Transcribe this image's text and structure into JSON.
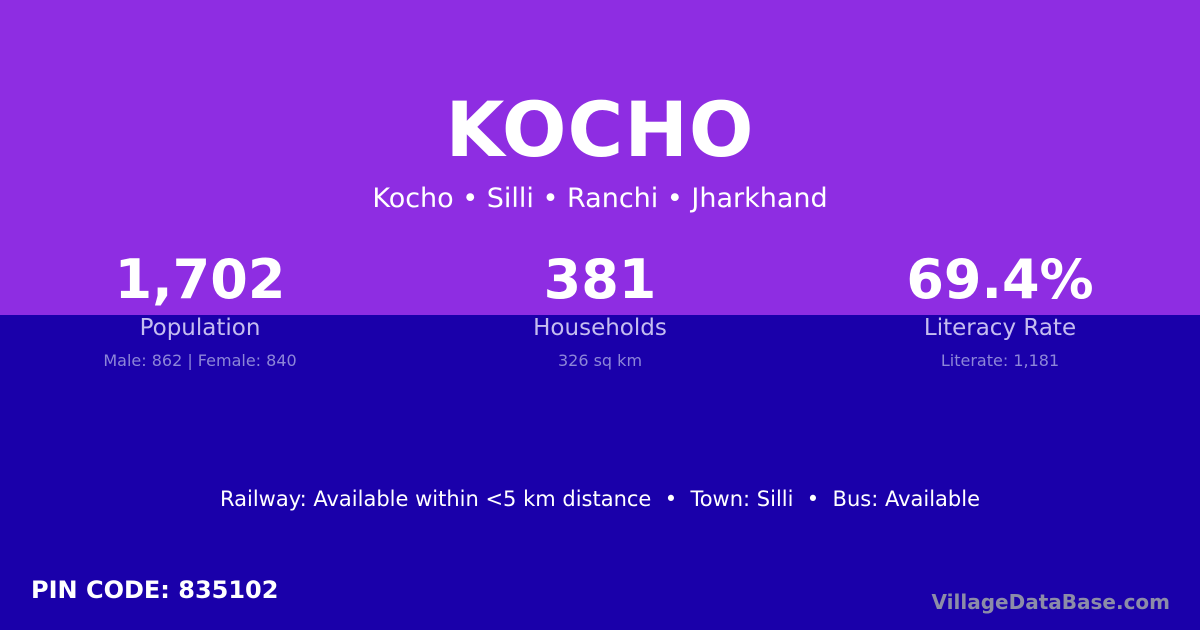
{
  "title": "KOCHO",
  "breadcrumb": "Kocho • Silli • Ranchi • Jharkhand",
  "stats": [
    {
      "value": "1,702",
      "label": "Population",
      "detail": "Male: 862 | Female: 840"
    },
    {
      "value": "381",
      "label": "Households",
      "detail": "326 sq km"
    },
    {
      "value": "69.4%",
      "label": "Literacy Rate",
      "detail": "Literate: 1,181"
    }
  ],
  "connectivity": "Railway: Available within <5 km distance  •  Town: Silli  •  Bus: Available",
  "pin_code": "PIN CODE: 835102",
  "brand": "VillageDataBase.com",
  "colors": {
    "top": "#8e2de2",
    "bottom": "#1a00aa"
  }
}
